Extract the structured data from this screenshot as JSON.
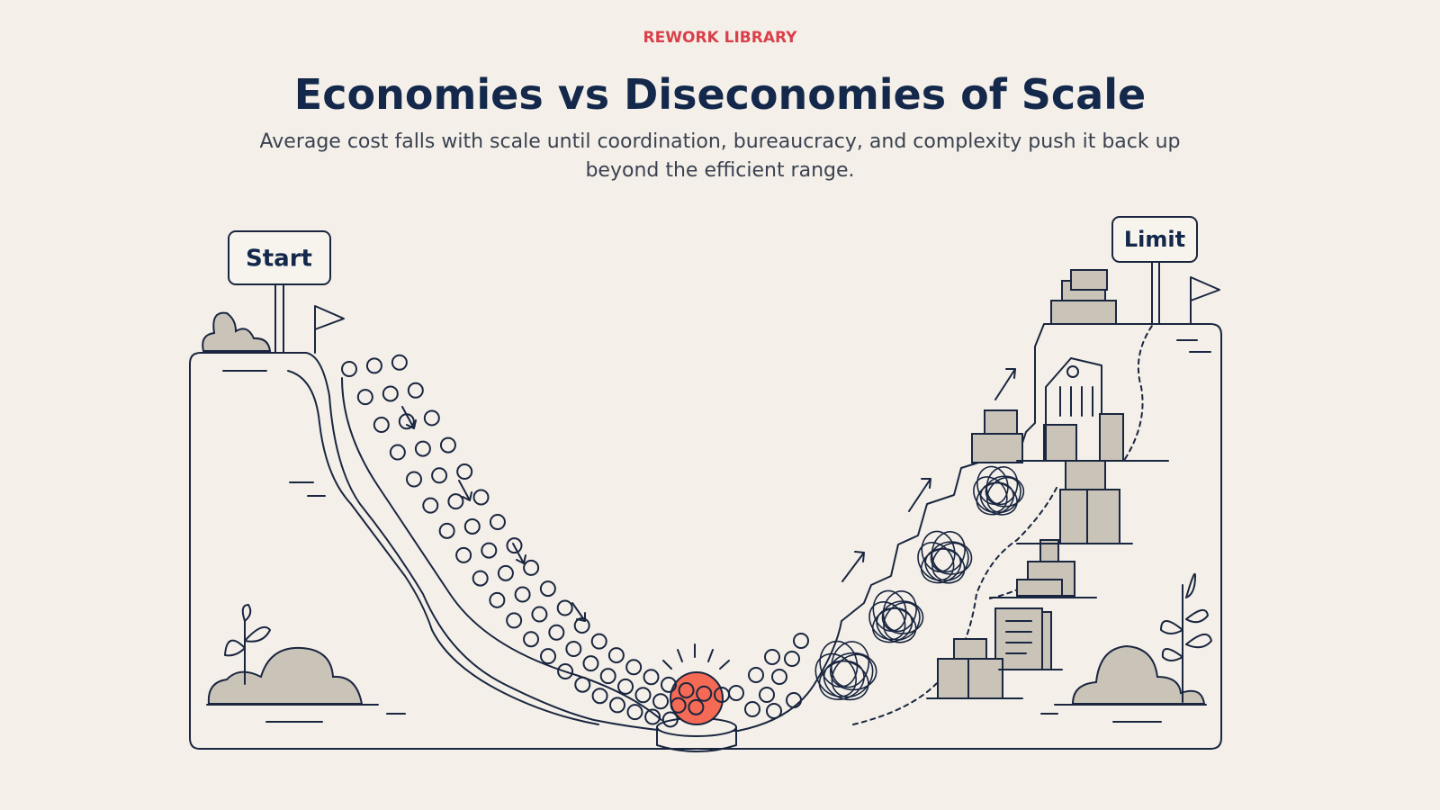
{
  "header": {
    "eyebrow": "REWORK LIBRARY",
    "title": "Economies vs Diseconomies of Scale",
    "subtitle": "Average cost falls with scale until coordination, bureaucracy, and complexity push it back up beyond the efficient range."
  },
  "labels": {
    "start": "Start",
    "limit": "Limit"
  }
}
